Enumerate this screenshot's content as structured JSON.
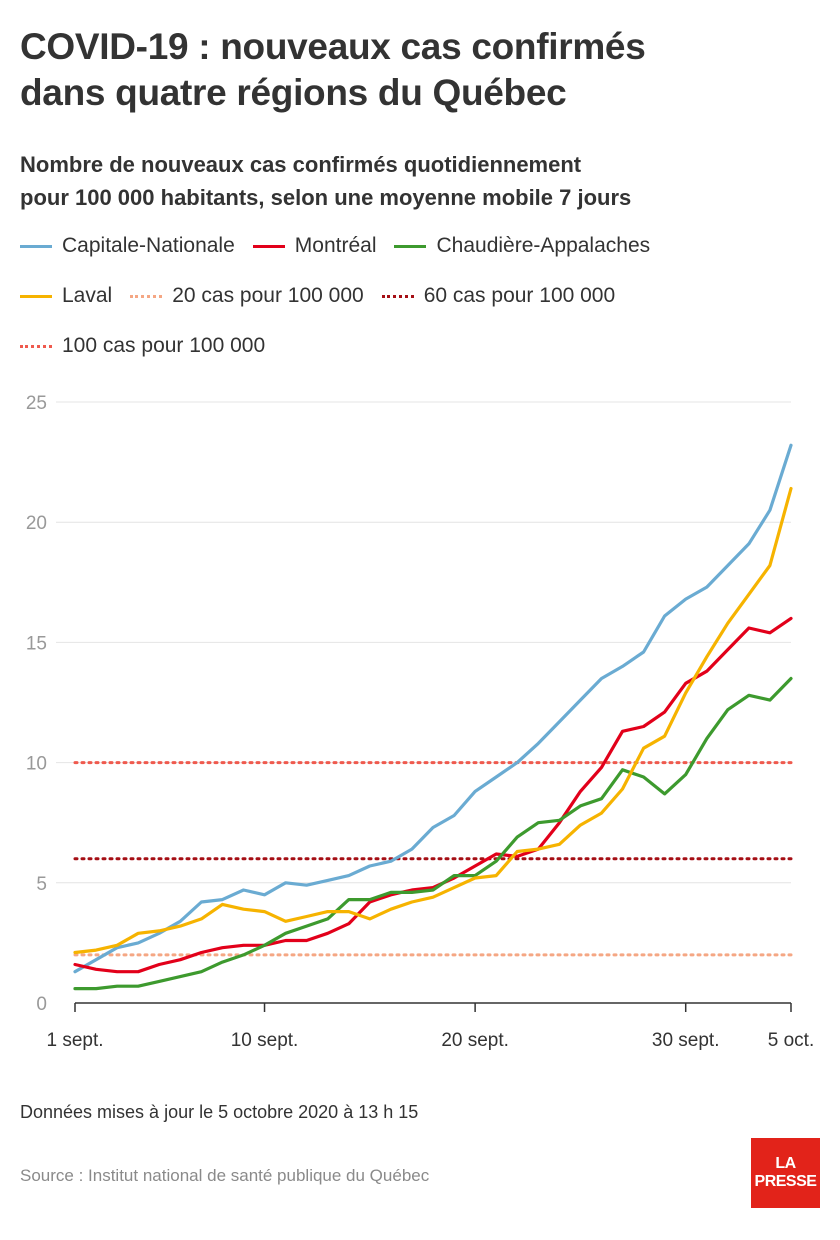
{
  "header": {
    "title_line1": "COVID-19 : nouveaux cas confirmés",
    "title_line2": "dans quatre régions du Québec",
    "subtitle_line1": "Nombre de nouveaux cas confirmés quotidiennement",
    "subtitle_line2": "pour 100 000 habitants, selon une moyenne mobile 7 jours"
  },
  "legend": {
    "capitale": "Capitale-Nationale",
    "montreal": "Montréal",
    "chaudiere": "Chaudière-Appalaches",
    "laval": "Laval",
    "ref20": "20 cas pour 100 000",
    "ref60": "60 cas pour 100 000",
    "ref100": "100 cas pour 100 000"
  },
  "colors": {
    "capitale": "#6aabd2",
    "montreal": "#e2001a",
    "chaudiere": "#3d9a2e",
    "laval": "#f6b300",
    "ref20": "#f5a784",
    "ref60": "#a50f15",
    "ref100": "#ef5a4e",
    "grid": "#e4e4e4",
    "axis": "#333333",
    "tick": "#999999",
    "brand": "#e2231a"
  },
  "chart_data": {
    "type": "line",
    "x_tick_labels": [
      "1 sept.",
      "10 sept.",
      "20 sept.",
      "30 sept.",
      "5 oct."
    ],
    "x_tick_days": [
      1,
      10,
      20,
      30,
      35
    ],
    "y_tick_labels": [
      "0",
      "5",
      "10",
      "15",
      "20",
      "25"
    ],
    "ylim": [
      0,
      25
    ],
    "xlim": [
      1,
      35
    ],
    "grid": true,
    "legend_position": "top",
    "series": [
      {
        "key": "capitale",
        "name": "Capitale-Nationale",
        "values": [
          1.3,
          1.8,
          2.3,
          2.5,
          2.9,
          3.4,
          4.2,
          4.3,
          4.7,
          4.5,
          5.0,
          4.9,
          5.1,
          5.3,
          5.7,
          5.9,
          6.4,
          7.3,
          7.8,
          8.8,
          9.4,
          10.0,
          10.8,
          11.7,
          12.6,
          13.5,
          14.0,
          14.6,
          16.1,
          16.8,
          17.3,
          18.2,
          19.1,
          20.5,
          23.2
        ]
      },
      {
        "key": "montreal",
        "name": "Montréal",
        "values": [
          1.6,
          1.4,
          1.3,
          1.3,
          1.6,
          1.8,
          2.1,
          2.3,
          2.4,
          2.4,
          2.6,
          2.6,
          2.9,
          3.3,
          4.2,
          4.5,
          4.7,
          4.8,
          5.2,
          5.7,
          6.2,
          6.1,
          6.4,
          7.5,
          8.8,
          9.8,
          11.3,
          11.5,
          12.1,
          13.3,
          13.8,
          14.7,
          15.6,
          15.4,
          16.0
        ]
      },
      {
        "key": "chaudiere",
        "name": "Chaudière-Appalaches",
        "values": [
          0.6,
          0.6,
          0.7,
          0.7,
          0.9,
          1.1,
          1.3,
          1.7,
          2.0,
          2.4,
          2.9,
          3.2,
          3.5,
          4.3,
          4.3,
          4.6,
          4.6,
          4.7,
          5.3,
          5.3,
          5.9,
          6.9,
          7.5,
          7.6,
          8.2,
          8.5,
          9.7,
          9.4,
          8.7,
          9.5,
          11.0,
          12.2,
          12.8,
          12.6,
          13.5
        ]
      },
      {
        "key": "laval",
        "name": "Laval",
        "values": [
          2.1,
          2.2,
          2.4,
          2.9,
          3.0,
          3.2,
          3.5,
          4.1,
          3.9,
          3.8,
          3.4,
          3.6,
          3.8,
          3.8,
          3.5,
          3.9,
          4.2,
          4.4,
          4.8,
          5.2,
          5.3,
          6.3,
          6.4,
          6.6,
          7.4,
          7.9,
          8.9,
          10.6,
          11.1,
          12.9,
          14.4,
          15.8,
          17.0,
          18.2,
          21.4
        ]
      }
    ],
    "reference_lines": [
      {
        "key": "ref20",
        "name": "20 cas pour 100 000",
        "value": 2.0
      },
      {
        "key": "ref60",
        "name": "60 cas pour 100 000",
        "value": 6.0
      },
      {
        "key": "ref100",
        "name": "100 cas pour 100 000",
        "value": 10.0
      }
    ]
  },
  "footer": {
    "update_note": "Données mises à jour le 5 octobre 2020 à 13 h 15",
    "source": "Source : Institut national de santé publique du Québec",
    "logo_line1": "LA",
    "logo_line2": "PRESSE"
  }
}
